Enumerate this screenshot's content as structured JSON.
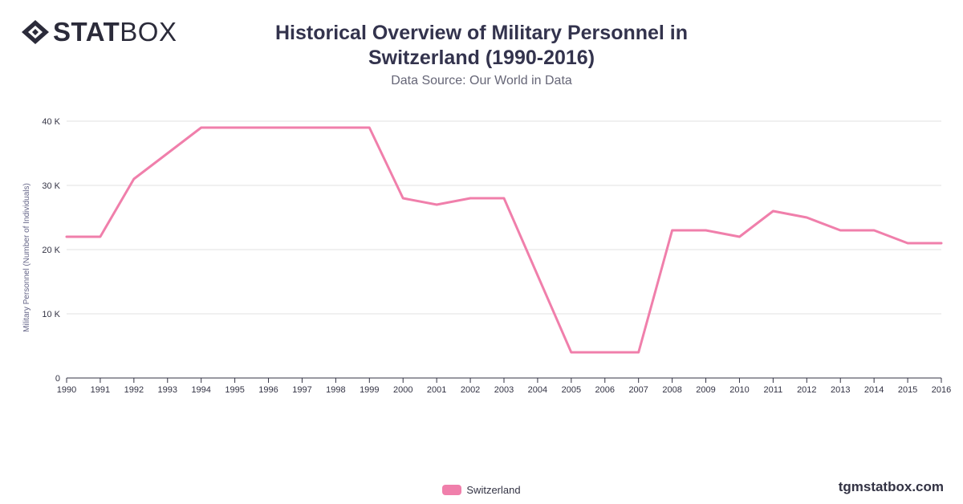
{
  "brand": {
    "bold_part": "STAT",
    "light_part": "BOX"
  },
  "header": {
    "title": "Historical Overview of Military Personnel in Switzerland (1990-2016)",
    "subtitle": "Data Source: Our World in Data"
  },
  "watermark": "tgmstatbox.com",
  "colors": {
    "series": "#f07fab",
    "grid": "#e0e0e0",
    "axis": "#333344"
  },
  "chart_data": {
    "type": "line",
    "title": "Historical Overview of Military Personnel in Switzerland (1990-2016)",
    "subtitle": "Data Source: Our World in Data",
    "xlabel": "",
    "ylabel": "Military Personnel (Number of Individuals)",
    "x": [
      1990,
      1991,
      1992,
      1993,
      1994,
      1995,
      1996,
      1997,
      1998,
      1999,
      2000,
      2001,
      2002,
      2003,
      2004,
      2005,
      2006,
      2007,
      2008,
      2009,
      2010,
      2011,
      2012,
      2013,
      2014,
      2015,
      2016
    ],
    "ylim": [
      0,
      40000
    ],
    "yticks": [
      {
        "value": 0,
        "label": "0"
      },
      {
        "value": 10000,
        "label": "10 K"
      },
      {
        "value": 20000,
        "label": "20 K"
      },
      {
        "value": 30000,
        "label": "30 K"
      },
      {
        "value": 40000,
        "label": "40 K"
      }
    ],
    "grid": true,
    "legend_position": "bottom",
    "series": [
      {
        "name": "Switzerland",
        "values": [
          22000,
          22000,
          31000,
          35000,
          39000,
          39000,
          39000,
          39000,
          39000,
          39000,
          28000,
          27000,
          28000,
          28000,
          16000,
          4000,
          4000,
          4000,
          23000,
          23000,
          22000,
          26000,
          25000,
          23000,
          23000,
          21000,
          21000
        ]
      }
    ]
  }
}
